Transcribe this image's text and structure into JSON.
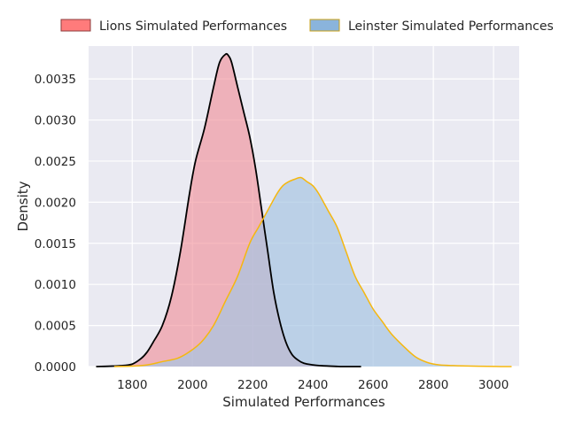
{
  "chart_data": {
    "type": "area",
    "xlabel": "Simulated Performances",
    "ylabel": "Density",
    "xlim": [
      1655,
      3085
    ],
    "ylim": [
      0,
      0.0039
    ],
    "x_ticks": [
      1800,
      2000,
      2200,
      2400,
      2600,
      2800,
      3000
    ],
    "y_ticks": [
      0.0,
      0.0005,
      0.001,
      0.0015,
      0.002,
      0.0025,
      0.003,
      0.0035
    ],
    "x_tick_labels": [
      "1800",
      "2000",
      "2200",
      "2400",
      "2600",
      "2800",
      "3000"
    ],
    "y_tick_labels": [
      "0.0000",
      "0.0005",
      "0.0010",
      "0.0015",
      "0.0020",
      "0.0025",
      "0.0030",
      "0.0035"
    ],
    "grid": true,
    "legend_position": "top",
    "series": [
      {
        "name": "Lions Simulated Performances",
        "fill_color": "#f08a94",
        "line_color": "#000000",
        "legend_color": "#ff7b7b",
        "x": [
          1680,
          1760,
          1800,
          1830,
          1850,
          1870,
          1900,
          1930,
          1960,
          1990,
          2010,
          2040,
          2070,
          2090,
          2110,
          2120,
          2130,
          2150,
          2170,
          2190,
          2210,
          2230,
          2250,
          2270,
          2290,
          2310,
          2330,
          2350,
          2370,
          2400,
          2430,
          2460,
          2500,
          2560
        ],
        "y": [
          0.0,
          1e-05,
          3e-05,
          0.0001,
          0.00018,
          0.0003,
          0.0005,
          0.00085,
          0.0014,
          0.0021,
          0.0025,
          0.0029,
          0.0034,
          0.0037,
          0.0038,
          0.00378,
          0.0037,
          0.0034,
          0.0031,
          0.0028,
          0.0024,
          0.0019,
          0.0014,
          0.0009,
          0.00055,
          0.0003,
          0.00015,
          8e-05,
          4e-05,
          2e-05,
          1e-05,
          5e-06,
          0.0,
          0.0
        ]
      },
      {
        "name": "Leinster Simulated Performances",
        "fill_color": "#a7c4e3",
        "line_color": "#f5b70f",
        "legend_color": "#8ab4dc",
        "x": [
          1740,
          1800,
          1850,
          1900,
          1950,
          1990,
          2030,
          2070,
          2110,
          2150,
          2190,
          2220,
          2250,
          2280,
          2300,
          2320,
          2340,
          2360,
          2380,
          2400,
          2420,
          2450,
          2480,
          2510,
          2540,
          2570,
          2600,
          2630,
          2660,
          2700,
          2740,
          2780,
          2820,
          2880,
          2950,
          3010,
          3060
        ],
        "y": [
          0.0,
          5e-06,
          2e-05,
          6e-05,
          0.0001,
          0.00018,
          0.0003,
          0.0005,
          0.0008,
          0.0011,
          0.0015,
          0.0017,
          0.0019,
          0.0021,
          0.0022,
          0.00225,
          0.00228,
          0.0023,
          0.00225,
          0.0022,
          0.0021,
          0.0019,
          0.0017,
          0.0014,
          0.0011,
          0.0009,
          0.0007,
          0.00055,
          0.0004,
          0.00025,
          0.00012,
          5e-05,
          2e-05,
          1e-05,
          3.5e-06,
          1e-06,
          0.0
        ]
      }
    ]
  }
}
